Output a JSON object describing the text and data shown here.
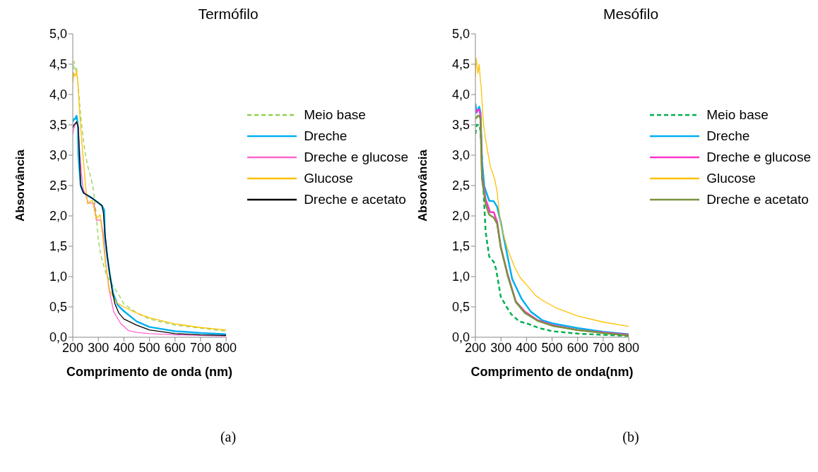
{
  "chart_data": [
    {
      "type": "line",
      "title": "Termófilo",
      "xlabel": "Comprimento de onda (nm)",
      "ylabel": "Absorvância",
      "annotations": [
        "(a)"
      ],
      "xlim": [
        200,
        800
      ],
      "xticks": [
        200,
        300,
        400,
        500,
        600,
        700,
        800
      ],
      "ylim": [
        0,
        5
      ],
      "yticks": [
        {
          "value": 0,
          "label": "0,0"
        },
        {
          "value": 0.5,
          "label": "0,5"
        },
        {
          "value": 1,
          "label": "1,0"
        },
        {
          "value": 1.5,
          "label": "1,5"
        },
        {
          "value": 2,
          "label": "2,0"
        },
        {
          "value": 2.5,
          "label": "2,5"
        },
        {
          "value": 3,
          "label": "3,0"
        },
        {
          "value": 3.5,
          "label": "3,5"
        },
        {
          "value": 4,
          "label": "4,0"
        },
        {
          "value": 4.5,
          "label": "4,5"
        },
        {
          "value": 5,
          "label": "5,0"
        }
      ],
      "grid": false,
      "legend": "right",
      "marker": "none",
      "series": [
        {
          "name": "Meio base",
          "color": "#92d050",
          "line_style": "dashed",
          "x": [
            200,
            205,
            210,
            215,
            220,
            230,
            240,
            250,
            260,
            270,
            280,
            290,
            300,
            310,
            320,
            330,
            350,
            380,
            400,
            450,
            500,
            600,
            700,
            800
          ],
          "values": [
            4.3,
            4.55,
            4.4,
            4.45,
            4.2,
            3.7,
            3.3,
            3.0,
            2.8,
            2.65,
            2.45,
            2.1,
            1.6,
            1.35,
            1.2,
            1.05,
            0.9,
            0.7,
            0.55,
            0.4,
            0.3,
            0.2,
            0.15,
            0.1
          ]
        },
        {
          "name": "Dreche",
          "color": "#00b0f0",
          "line_style": "solid",
          "x": [
            200,
            205,
            210,
            215,
            220,
            222,
            231,
            242,
            280,
            314,
            320,
            323,
            326,
            335,
            344,
            358,
            376,
            400,
            450,
            500,
            600,
            700,
            800
          ],
          "values": [
            3.55,
            3.6,
            3.6,
            3.65,
            3.5,
            3.0,
            2.5,
            2.38,
            2.28,
            2.17,
            2.12,
            2.1,
            1.66,
            1.32,
            1.06,
            0.72,
            0.53,
            0.43,
            0.26,
            0.17,
            0.1,
            0.07,
            0.05
          ]
        },
        {
          "name": "Dreche e glucose",
          "color": "#ff66cc",
          "line_style": "solid",
          "x": [
            200,
            205,
            215,
            220,
            230,
            240,
            250,
            261,
            283,
            292,
            310,
            321,
            328,
            342,
            360,
            387,
            418,
            450,
            500,
            600,
            700,
            800
          ],
          "values": [
            3.35,
            3.45,
            3.55,
            3.5,
            2.9,
            2.45,
            2.35,
            2.21,
            2.21,
            1.93,
            1.93,
            1.66,
            1.25,
            0.79,
            0.42,
            0.23,
            0.11,
            0.08,
            0.06,
            0.04,
            0.03,
            0.02
          ]
        },
        {
          "name": "Glucose",
          "color": "#ffc000",
          "line_style": "solid",
          "x": [
            200,
            205,
            210,
            215,
            220,
            230,
            240,
            250,
            258,
            276,
            292,
            307,
            319,
            328,
            345,
            372,
            400,
            450,
            500,
            600,
            700,
            800
          ],
          "values": [
            4.2,
            4.35,
            4.3,
            4.4,
            4.2,
            3.5,
            3.0,
            2.5,
            2.2,
            2.26,
            1.95,
            2.02,
            1.6,
            1.21,
            0.76,
            0.57,
            0.5,
            0.4,
            0.32,
            0.22,
            0.16,
            0.12
          ]
        },
        {
          "name": "Dreche e acetato",
          "color": "#000000",
          "line_style": "solid",
          "x": [
            200,
            205,
            215,
            222,
            231,
            242,
            280,
            314,
            320,
            325,
            335,
            344,
            355,
            365,
            380,
            400,
            450,
            500,
            600,
            700,
            800
          ],
          "values": [
            3.45,
            3.5,
            3.55,
            3.45,
            2.5,
            2.38,
            2.28,
            2.17,
            2.05,
            1.75,
            1.35,
            1.06,
            0.75,
            0.55,
            0.4,
            0.3,
            0.2,
            0.12,
            0.06,
            0.04,
            0.03
          ]
        }
      ]
    },
    {
      "type": "line",
      "title": "Mesófilo",
      "xlabel": "Comprimento de onda(nm)",
      "ylabel": "Absorvância",
      "annotations": [
        "(b)"
      ],
      "xlim": [
        200,
        800
      ],
      "xticks": [
        200,
        300,
        400,
        500,
        600,
        700,
        800
      ],
      "ylim": [
        0,
        5
      ],
      "yticks": [
        {
          "value": 0,
          "label": "0,0"
        },
        {
          "value": 0.5,
          "label": "0,5"
        },
        {
          "value": 1,
          "label": "1,0"
        },
        {
          "value": 1.5,
          "label": "1,5"
        },
        {
          "value": 2,
          "label": "2,0"
        },
        {
          "value": 2.5,
          "label": "2,5"
        },
        {
          "value": 3,
          "label": "3,0"
        },
        {
          "value": 3.5,
          "label": "3,5"
        },
        {
          "value": 4,
          "label": "4,0"
        },
        {
          "value": 4.5,
          "label": "4,5"
        },
        {
          "value": 5,
          "label": "5,0"
        }
      ],
      "grid": false,
      "legend": "right",
      "marker": "none",
      "series": [
        {
          "name": "Meio base",
          "color": "#00b050",
          "line_style": "dashed",
          "x": [
            200,
            205,
            215,
            220,
            226,
            231,
            240,
            254,
            272,
            281,
            299,
            322,
            340,
            372,
            400,
            450,
            500,
            600,
            700,
            800
          ],
          "values": [
            3.35,
            3.5,
            3.5,
            3.4,
            2.93,
            2.48,
            1.74,
            1.33,
            1.24,
            1.12,
            0.67,
            0.5,
            0.38,
            0.26,
            0.23,
            0.15,
            0.1,
            0.06,
            0.04,
            0.02
          ]
        },
        {
          "name": "Dreche",
          "color": "#00b0f0",
          "line_style": "solid",
          "x": [
            200,
            205,
            215,
            220,
            226,
            235,
            254,
            272,
            285,
            299,
            322,
            344,
            381,
            417,
            462,
            500,
            600,
            700,
            800
          ],
          "values": [
            3.85,
            3.7,
            3.8,
            3.7,
            2.89,
            2.48,
            2.25,
            2.24,
            2.15,
            1.9,
            1.41,
            0.96,
            0.63,
            0.42,
            0.28,
            0.23,
            0.15,
            0.09,
            0.05
          ]
        },
        {
          "name": "Dreche e glucose",
          "color": "#ff33cc",
          "line_style": "solid",
          "x": [
            200,
            210,
            215,
            220,
            226,
            240,
            258,
            272,
            285,
            299,
            326,
            358,
            394,
            444,
            500,
            600,
            700,
            800
          ],
          "values": [
            3.7,
            3.75,
            3.75,
            3.65,
            2.64,
            2.27,
            2.06,
            2.06,
            1.9,
            1.49,
            1.04,
            0.59,
            0.42,
            0.28,
            0.2,
            0.12,
            0.08,
            0.04
          ]
        },
        {
          "name": "Glucose",
          "color": "#ffc000",
          "line_style": "solid",
          "x": [
            200,
            203,
            210,
            215,
            220,
            222,
            231,
            238,
            258,
            276,
            285,
            299,
            326,
            353,
            376,
            403,
            435,
            462,
            517,
            600,
            700,
            800
          ],
          "values": [
            4.3,
            4.6,
            4.35,
            4.5,
            4.2,
            4.16,
            3.54,
            3.3,
            2.82,
            2.6,
            2.39,
            1.86,
            1.45,
            1.16,
            0.98,
            0.85,
            0.69,
            0.61,
            0.48,
            0.35,
            0.25,
            0.18
          ]
        },
        {
          "name": "Dreche e acetato",
          "color": "#77933c",
          "line_style": "solid",
          "x": [
            200,
            210,
            215,
            220,
            226,
            240,
            254,
            272,
            285,
            299,
            326,
            358,
            394,
            444,
            500,
            600,
            700,
            800
          ],
          "values": [
            3.6,
            3.65,
            3.65,
            3.6,
            2.6,
            2.2,
            2.02,
            1.97,
            1.87,
            1.49,
            1.02,
            0.58,
            0.4,
            0.27,
            0.19,
            0.12,
            0.07,
            0.03
          ]
        }
      ]
    }
  ]
}
